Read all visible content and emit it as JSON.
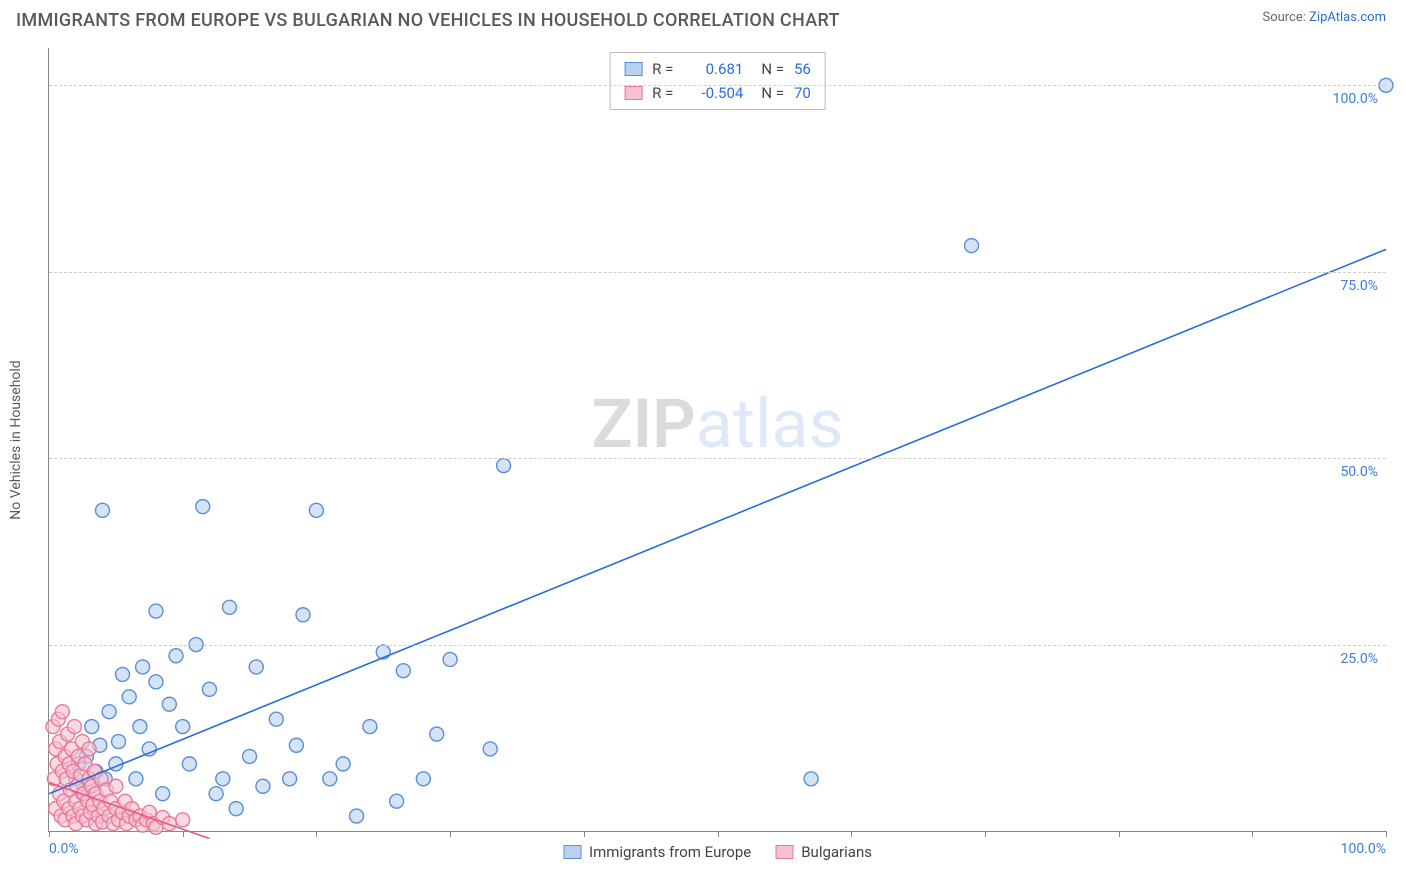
{
  "header": {
    "title": "IMMIGRANTS FROM EUROPE VS BULGARIAN NO VEHICLES IN HOUSEHOLD CORRELATION CHART",
    "source_prefix": "Source: ",
    "source_link": "ZipAtlas.com"
  },
  "chart": {
    "type": "scatter",
    "ylabel": "No Vehicles in Household",
    "xlim": [
      0,
      100
    ],
    "ylim": [
      0,
      105
    ],
    "xtick_positions": [
      0,
      10,
      20,
      30,
      40,
      50,
      60,
      70,
      80,
      90,
      100
    ],
    "xtick_labels": {
      "0": "0.0%",
      "100": "100.0%"
    },
    "ytick_positions": [
      0,
      25,
      50,
      75,
      100
    ],
    "ytick_labels": {
      "25": "25.0%",
      "50": "50.0%",
      "75": "75.0%",
      "100": "100.0%"
    },
    "grid_color": "#cccccc",
    "axis_color": "#888888",
    "background_color": "#ffffff",
    "label_fontsize": 14,
    "title_fontsize": 18,
    "tick_label_color": "#3b7de0",
    "marker_radius": 7,
    "marker_stroke_width": 1.4,
    "watermark": {
      "zip": "ZIP",
      "atlas": "atlas"
    },
    "series": [
      {
        "id": "europe",
        "name": "Immigrants from Europe",
        "fill": "#b9d1f2",
        "fill_opacity": 0.6,
        "stroke": "#5a8fd8",
        "line_color": "#2a6ed9",
        "line_width": 1.6,
        "trend": {
          "x1": 0,
          "y1": 5,
          "x2": 100,
          "y2": 78
        },
        "r_value": "0.681",
        "n_value": "56",
        "points": [
          [
            100,
            100
          ],
          [
            69,
            78.5
          ],
          [
            57,
            7
          ],
          [
            34,
            49
          ],
          [
            33,
            11
          ],
          [
            30,
            23
          ],
          [
            29,
            13
          ],
          [
            28,
            7
          ],
          [
            26.5,
            21.5
          ],
          [
            26,
            4
          ],
          [
            25,
            24
          ],
          [
            24,
            14
          ],
          [
            23,
            2
          ],
          [
            22,
            9
          ],
          [
            21,
            7
          ],
          [
            20,
            43
          ],
          [
            19,
            29
          ],
          [
            18.5,
            11.5
          ],
          [
            18,
            7
          ],
          [
            17,
            15
          ],
          [
            16,
            6
          ],
          [
            15.5,
            22
          ],
          [
            15,
            10
          ],
          [
            14,
            3
          ],
          [
            13.5,
            30
          ],
          [
            13,
            7
          ],
          [
            12.5,
            5
          ],
          [
            12,
            19
          ],
          [
            11.5,
            43.5
          ],
          [
            11,
            25
          ],
          [
            10.5,
            9
          ],
          [
            10,
            14
          ],
          [
            9.5,
            23.5
          ],
          [
            9,
            17
          ],
          [
            8.5,
            5
          ],
          [
            8,
            29.5
          ],
          [
            8,
            20
          ],
          [
            7.5,
            11
          ],
          [
            7,
            22
          ],
          [
            6.8,
            14
          ],
          [
            6.5,
            7
          ],
          [
            6,
            18
          ],
          [
            5.5,
            21
          ],
          [
            5.2,
            12
          ],
          [
            5,
            9
          ],
          [
            4.5,
            16
          ],
          [
            4.2,
            7
          ],
          [
            4,
            43
          ],
          [
            3.8,
            11.5
          ],
          [
            3.5,
            8
          ],
          [
            3.2,
            14
          ],
          [
            3,
            6
          ],
          [
            2.8,
            10
          ],
          [
            2.5,
            5
          ],
          [
            2.2,
            9
          ],
          [
            2,
            7
          ]
        ]
      },
      {
        "id": "bulgarians",
        "name": "Bulgarians",
        "fill": "#f6c2cf",
        "fill_opacity": 0.6,
        "stroke": "#e87a9a",
        "line_color": "#e85a85",
        "line_width": 1.6,
        "trend": {
          "x1": 0,
          "y1": 6.5,
          "x2": 12,
          "y2": -1
        },
        "r_value": "-0.504",
        "n_value": "70",
        "points": [
          [
            0.3,
            14
          ],
          [
            0.4,
            7
          ],
          [
            0.5,
            11
          ],
          [
            0.5,
            3
          ],
          [
            0.6,
            9
          ],
          [
            0.7,
            15
          ],
          [
            0.8,
            5
          ],
          [
            0.8,
            12
          ],
          [
            0.9,
            2
          ],
          [
            1.0,
            8
          ],
          [
            1.0,
            16
          ],
          [
            1.1,
            4
          ],
          [
            1.2,
            10
          ],
          [
            1.2,
            1.5
          ],
          [
            1.3,
            7
          ],
          [
            1.4,
            13
          ],
          [
            1.5,
            3
          ],
          [
            1.5,
            9
          ],
          [
            1.6,
            5.5
          ],
          [
            1.7,
            11
          ],
          [
            1.8,
            2
          ],
          [
            1.8,
            8
          ],
          [
            1.9,
            14
          ],
          [
            2.0,
            4
          ],
          [
            2.0,
            1
          ],
          [
            2.1,
            6
          ],
          [
            2.2,
            10
          ],
          [
            2.3,
            3
          ],
          [
            2.4,
            7.5
          ],
          [
            2.5,
            12
          ],
          [
            2.5,
            2
          ],
          [
            2.6,
            5
          ],
          [
            2.7,
            9
          ],
          [
            2.8,
            1.5
          ],
          [
            2.9,
            4
          ],
          [
            3.0,
            7
          ],
          [
            3.0,
            11
          ],
          [
            3.1,
            2.5
          ],
          [
            3.2,
            6
          ],
          [
            3.3,
            3.5
          ],
          [
            3.4,
            8
          ],
          [
            3.5,
            1
          ],
          [
            3.5,
            5
          ],
          [
            3.7,
            2
          ],
          [
            3.8,
            4
          ],
          [
            3.9,
            7
          ],
          [
            4.0,
            1.2
          ],
          [
            4.1,
            3
          ],
          [
            4.3,
            5.5
          ],
          [
            4.5,
            2
          ],
          [
            4.6,
            4
          ],
          [
            4.8,
            1
          ],
          [
            5.0,
            3
          ],
          [
            5.0,
            6
          ],
          [
            5.2,
            1.5
          ],
          [
            5.5,
            2.5
          ],
          [
            5.7,
            4
          ],
          [
            5.8,
            1
          ],
          [
            6.0,
            2
          ],
          [
            6.2,
            3
          ],
          [
            6.5,
            1.5
          ],
          [
            6.8,
            2
          ],
          [
            7.0,
            0.8
          ],
          [
            7.3,
            1.5
          ],
          [
            7.5,
            2.5
          ],
          [
            7.8,
            1
          ],
          [
            8.0,
            0.5
          ],
          [
            8.5,
            1.8
          ],
          [
            9.0,
            1
          ],
          [
            10.0,
            1.5
          ]
        ]
      }
    ],
    "top_legend": {
      "r_prefix": "R =",
      "n_prefix": "N ="
    },
    "bottom_legend_order": [
      "europe",
      "bulgarians"
    ]
  }
}
